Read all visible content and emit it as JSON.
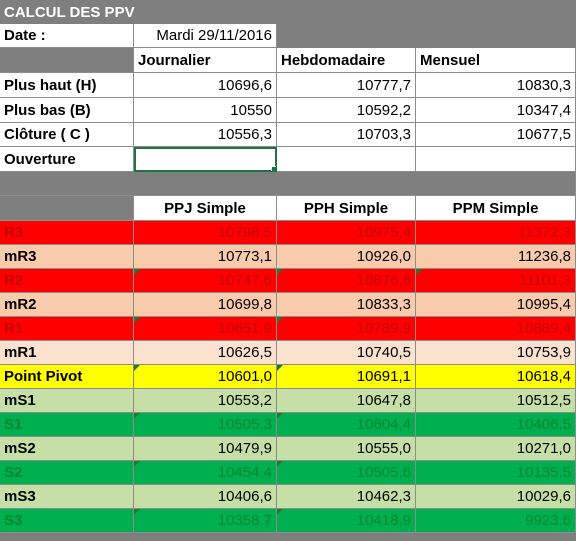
{
  "title": "CALCUL DES PPV",
  "date_label": "Date :",
  "date_value": "Mardi 29/11/2016",
  "periods": [
    "Journalier",
    "Hebdomadaire",
    "Mensuel"
  ],
  "inputs": [
    {
      "label": "Plus haut (H)",
      "values": [
        "10696,6",
        "10777,7",
        "10830,3"
      ]
    },
    {
      "label": "Plus bas (B)",
      "values": [
        "10550",
        "10592,2",
        "10347,4"
      ]
    },
    {
      "label": "Clôture ( C )",
      "values": [
        "10556,3",
        "10703,3",
        "10677,5"
      ]
    },
    {
      "label": "Ouverture",
      "values": [
        "",
        "",
        ""
      ]
    }
  ],
  "result_headers": [
    "PPJ Simple",
    "PPH Simple",
    "PPM Simple"
  ],
  "results": [
    {
      "label": "R3",
      "values": [
        "10798,5",
        "10975,4",
        "11372,3"
      ],
      "bg": "#ff0000",
      "fg": "#c00000"
    },
    {
      "label": "mR3",
      "values": [
        "10773,1",
        "10926,0",
        "11236,8"
      ],
      "bg": "#f8cbad",
      "fg": "#000000"
    },
    {
      "label": "R2",
      "values": [
        "10747,6",
        "10876,6",
        "11101,3"
      ],
      "bg": "#ff0000",
      "fg": "#c00000"
    },
    {
      "label": "mR2",
      "values": [
        "10699,8",
        "10833,3",
        "10995,4"
      ],
      "bg": "#f8cbad",
      "fg": "#000000"
    },
    {
      "label": "R1",
      "values": [
        "10651,9",
        "10789,9",
        "10889,4"
      ],
      "bg": "#ff0000",
      "fg": "#c00000"
    },
    {
      "label": "mR1",
      "values": [
        "10626,5",
        "10740,5",
        "10753,9"
      ],
      "bg": "#fbe1d0",
      "fg": "#000000"
    },
    {
      "label": "Point Pivot",
      "values": [
        "10601,0",
        "10691,1",
        "10618,4"
      ],
      "bg": "#ffff00",
      "fg": "#000000"
    },
    {
      "label": "mS1",
      "values": [
        "10553,2",
        "10647,8",
        "10512,5"
      ],
      "bg": "#c6dfa7",
      "fg": "#000000"
    },
    {
      "label": "S1",
      "values": [
        "10505,3",
        "10604,4",
        "10406,5"
      ],
      "bg": "#00b050",
      "fg": "#00862b"
    },
    {
      "label": "mS2",
      "values": [
        "10479,9",
        "10555,0",
        "10271,0"
      ],
      "bg": "#c6dfa7",
      "fg": "#000000"
    },
    {
      "label": "S2",
      "values": [
        "10454,4",
        "10505,6",
        "10135,5"
      ],
      "bg": "#00b050",
      "fg": "#00862b"
    },
    {
      "label": "mS3",
      "values": [
        "10406,6",
        "10462,3",
        "10029,6"
      ],
      "bg": "#c6dfa7",
      "fg": "#000000"
    },
    {
      "label": "S3",
      "values": [
        "10358,7",
        "10418,9",
        "9923,6"
      ],
      "bg": "#00b050",
      "fg": "#00862b"
    }
  ],
  "colors": {
    "title_bg": "#7f7f7f",
    "grid_line": "#8c8c8c",
    "selection": "#217346"
  }
}
